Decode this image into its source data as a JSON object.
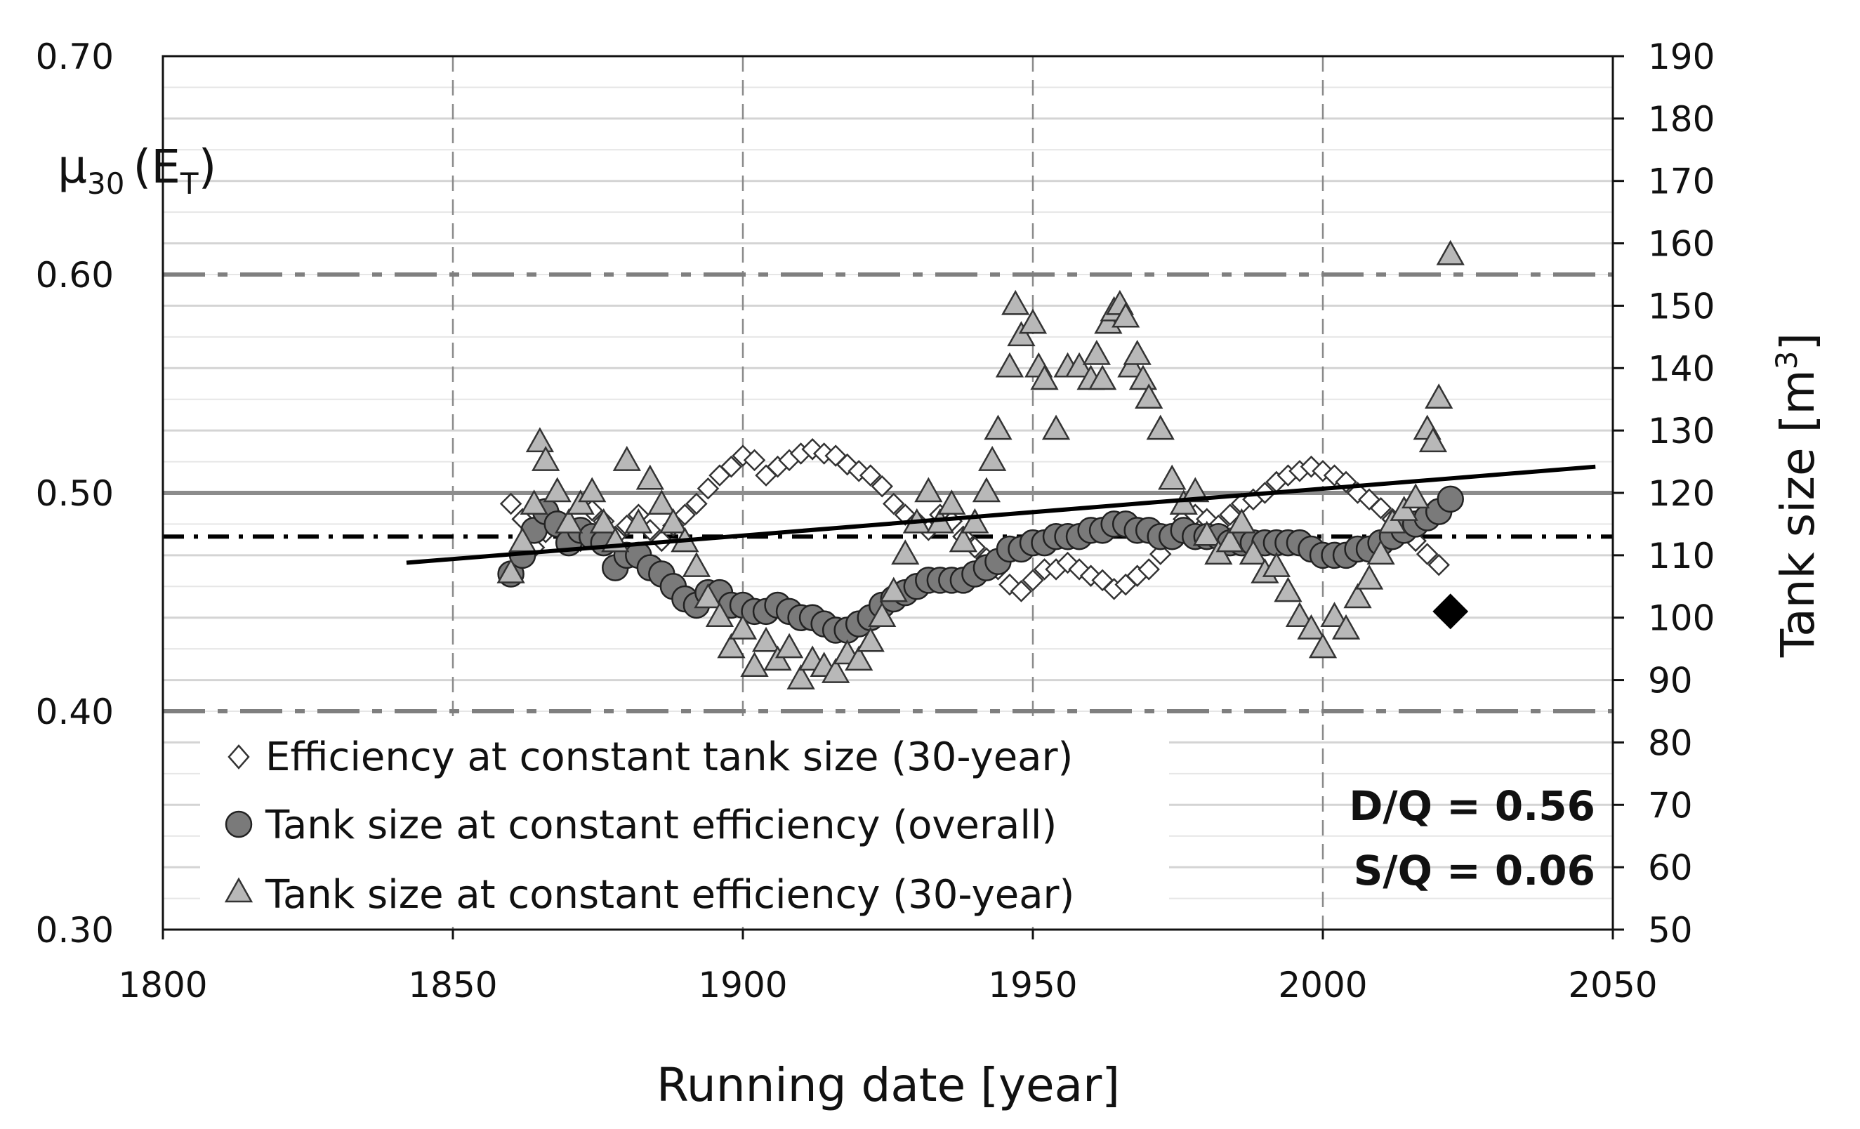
{
  "chart_data": {
    "type": "scatter",
    "xlabel": "Running date [year]",
    "ylabel_left": "μ30 (ET)",
    "ylabel_left_parts": {
      "mu": "μ",
      "mu_sub": "30",
      "open": "(E",
      "e_sub": "T",
      "close": ")"
    },
    "ylabel_right": "Tank size [m3]",
    "ylabel_right_parts": {
      "main": "Tank size [m",
      "sup": "3",
      "close": "]"
    },
    "xlim": [
      1800,
      2050
    ],
    "ylim_left": [
      0.3,
      0.7
    ],
    "ylim_right": [
      50,
      190
    ],
    "x_ticks": [
      "1800",
      "1850",
      "1900",
      "1950",
      "2000",
      "2050"
    ],
    "y_left_ticks": [
      "0.30",
      "0.40",
      "0.50",
      "0.60",
      "0.70"
    ],
    "y_right_ticks": [
      "50",
      "60",
      "70",
      "80",
      "90",
      "100",
      "110",
      "120",
      "130",
      "140",
      "150",
      "160",
      "170",
      "180",
      "190"
    ],
    "annotations": {
      "dq": "D/Q = 0.56",
      "sq": "S/Q =  0.06"
    },
    "reference_lines": {
      "upper_dashed_efficiency": 0.6,
      "lower_dashed_efficiency": 0.4,
      "solid_efficiency": 0.5,
      "dashdot_efficiency": 0.48
    },
    "trend_line": {
      "x": [
        1842,
        2047
      ],
      "y_efficiency": [
        0.468,
        0.512
      ]
    },
    "single_point": {
      "x": 2022,
      "y_tank": 101
    },
    "series": [
      {
        "name": "Efficiency at constant tank size (30-year)",
        "marker": "diamond-open",
        "axis": "left",
        "x": [
          1860,
          1862,
          1864,
          1866,
          1868,
          1870,
          1872,
          1874,
          1876,
          1878,
          1880,
          1882,
          1884,
          1886,
          1888,
          1890,
          1892,
          1894,
          1896,
          1898,
          1900,
          1902,
          1904,
          1906,
          1908,
          1910,
          1912,
          1914,
          1916,
          1918,
          1920,
          1922,
          1924,
          1926,
          1928,
          1930,
          1932,
          1934,
          1936,
          1938,
          1940,
          1942,
          1944,
          1946,
          1948,
          1950,
          1952,
          1954,
          1956,
          1958,
          1960,
          1962,
          1964,
          1966,
          1968,
          1970,
          1972,
          1974,
          1976,
          1978,
          1980,
          1982,
          1984,
          1986,
          1988,
          1990,
          1992,
          1994,
          1996,
          1998,
          2000,
          2002,
          2004,
          2006,
          2008,
          2010,
          2012,
          2014,
          2016,
          2018,
          2020
        ],
        "y": [
          0.495,
          0.488,
          0.475,
          0.482,
          0.488,
          0.483,
          0.478,
          0.492,
          0.487,
          0.48,
          0.485,
          0.49,
          0.483,
          0.478,
          0.485,
          0.49,
          0.495,
          0.502,
          0.508,
          0.512,
          0.517,
          0.515,
          0.508,
          0.512,
          0.515,
          0.518,
          0.52,
          0.518,
          0.517,
          0.513,
          0.51,
          0.508,
          0.503,
          0.495,
          0.49,
          0.487,
          0.483,
          0.49,
          0.487,
          0.48,
          0.475,
          0.47,
          0.465,
          0.458,
          0.455,
          0.46,
          0.465,
          0.465,
          0.468,
          0.465,
          0.462,
          0.46,
          0.456,
          0.458,
          0.462,
          0.465,
          0.472,
          0.48,
          0.488,
          0.49,
          0.488,
          0.485,
          0.49,
          0.495,
          0.497,
          0.5,
          0.505,
          0.508,
          0.51,
          0.512,
          0.51,
          0.508,
          0.505,
          0.5,
          0.497,
          0.493,
          0.488,
          0.483,
          0.478,
          0.472,
          0.467
        ]
      },
      {
        "name": "Tank size at constant efficiency (overall)",
        "marker": "circle",
        "axis": "right",
        "x": [
          1860,
          1862,
          1864,
          1866,
          1868,
          1870,
          1872,
          1874,
          1876,
          1878,
          1880,
          1882,
          1884,
          1886,
          1888,
          1890,
          1892,
          1894,
          1896,
          1898,
          1900,
          1902,
          1904,
          1906,
          1908,
          1910,
          1912,
          1914,
          1916,
          1918,
          1920,
          1922,
          1924,
          1926,
          1928,
          1930,
          1932,
          1934,
          1936,
          1938,
          1940,
          1942,
          1944,
          1946,
          1948,
          1950,
          1952,
          1954,
          1956,
          1958,
          1960,
          1962,
          1964,
          1966,
          1968,
          1970,
          1972,
          1974,
          1976,
          1978,
          1980,
          1982,
          1984,
          1986,
          1988,
          1990,
          1992,
          1994,
          1996,
          1998,
          2000,
          2002,
          2004,
          2006,
          2008,
          2010,
          2012,
          2014,
          2016,
          2018,
          2020,
          2022
        ],
        "y": [
          107,
          110,
          114,
          117,
          115,
          112,
          114,
          113,
          112,
          108,
          110,
          110,
          108,
          107,
          105,
          103,
          102,
          104,
          104,
          102,
          102,
          101,
          101,
          102,
          101,
          100,
          100,
          99,
          98,
          98,
          99,
          100,
          102,
          103,
          104,
          105,
          106,
          106,
          106,
          106,
          107,
          108,
          109,
          111,
          111,
          112,
          112,
          113,
          113,
          113,
          114,
          114,
          115,
          115,
          114,
          114,
          113,
          113,
          114,
          113,
          113,
          113,
          112,
          112,
          112,
          112,
          112,
          112,
          112,
          111,
          110,
          110,
          110,
          111,
          111,
          112,
          113,
          114,
          115,
          116,
          117,
          119
        ]
      },
      {
        "name": "Tank size at constant efficiency (30-year)",
        "marker": "triangle",
        "axis": "right",
        "x": [
          1860,
          1862,
          1864,
          1865,
          1866,
          1868,
          1870,
          1872,
          1874,
          1876,
          1878,
          1880,
          1882,
          1884,
          1886,
          1888,
          1890,
          1892,
          1894,
          1896,
          1898,
          1900,
          1902,
          1904,
          1906,
          1908,
          1910,
          1912,
          1914,
          1916,
          1918,
          1920,
          1922,
          1924,
          1926,
          1928,
          1930,
          1932,
          1934,
          1936,
          1938,
          1940,
          1942,
          1943,
          1944,
          1946,
          1947,
          1948,
          1950,
          1951,
          1952,
          1954,
          1956,
          1958,
          1960,
          1961,
          1962,
          1963,
          1964,
          1965,
          1966,
          1967,
          1968,
          1969,
          1970,
          1972,
          1974,
          1976,
          1978,
          1980,
          1982,
          1984,
          1986,
          1988,
          1990,
          1992,
          1994,
          1996,
          1998,
          2000,
          2002,
          2004,
          2006,
          2008,
          2010,
          2012,
          2014,
          2016,
          2018,
          2019,
          2020,
          2022
        ],
        "y": [
          107,
          112,
          118,
          128,
          125,
          120,
          115,
          118,
          120,
          115,
          112,
          125,
          115,
          122,
          118,
          115,
          112,
          108,
          103,
          100,
          95,
          98,
          92,
          96,
          93,
          95,
          90,
          93,
          92,
          91,
          94,
          93,
          96,
          100,
          104,
          110,
          115,
          120,
          115,
          118,
          112,
          115,
          120,
          125,
          130,
          140,
          150,
          145,
          147,
          140,
          138,
          130,
          140,
          140,
          138,
          142,
          138,
          147,
          149,
          150,
          148,
          140,
          142,
          138,
          135,
          130,
          122,
          118,
          120,
          113,
          110,
          112,
          115,
          110,
          107,
          108,
          104,
          100,
          98,
          95,
          100,
          98,
          103,
          106,
          110,
          115,
          117,
          119,
          130,
          128,
          135,
          158
        ]
      }
    ]
  }
}
